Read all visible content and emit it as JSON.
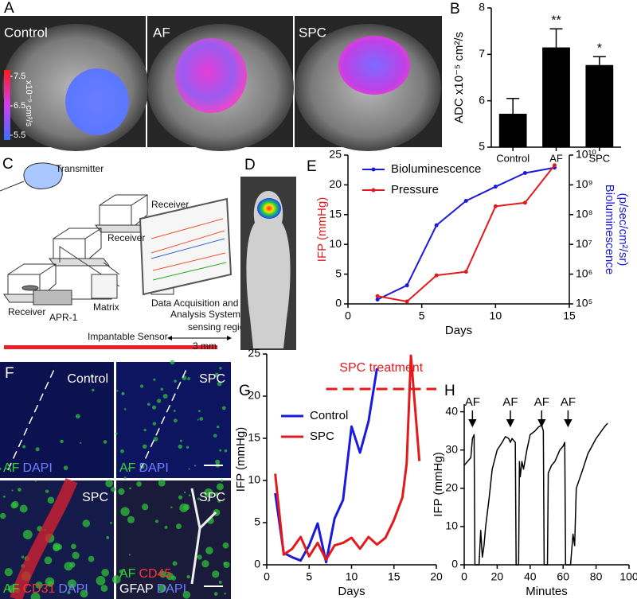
{
  "panel_labels": [
    "A",
    "B",
    "C",
    "D",
    "E",
    "F",
    "G",
    "H"
  ],
  "mri": {
    "titles": [
      "Control",
      "AF",
      "SPC"
    ],
    "colorbar_ticks": [
      7.5,
      6.5,
      5.5
    ],
    "colorbar_label": "x10⁻⁵ cm²/s"
  },
  "diagram": {
    "transmitter": "Transmitter",
    "receivers": [
      "Receiver",
      "Receiver",
      "Receiver"
    ],
    "apr": "APR-1",
    "matrix": "Matrix",
    "system": [
      "Data Acquisition and",
      "Analysis System"
    ],
    "sensor": "Impantable Sensor",
    "sensing_region": "sensing region",
    "sensing_length": "3 mm"
  },
  "histology": {
    "stain_colors": {
      "AF": "#33d633",
      "DAPI": "#6f7fff",
      "CD31": "#ff3333",
      "CD45": "#ff3333",
      "GFAP": "#ffffff"
    },
    "tiles": [
      {
        "title": "Control",
        "stains": [
          "AF",
          "DAPI"
        ]
      },
      {
        "title": "SPC",
        "stains": [
          "AF",
          "DAPI"
        ]
      },
      {
        "title": "SPC",
        "stains": [
          "AF",
          "CD31",
          "DAPI"
        ]
      },
      {
        "title": "SPC",
        "stains": [
          "AF",
          "CD45",
          "GFAP",
          "DAPI"
        ]
      }
    ]
  },
  "chart_data": [
    {
      "type": "bar",
      "ylabel": "ADC x10⁻⁵ cm²/s",
      "categories": [
        "Control",
        "AF",
        "SPC"
      ],
      "values": [
        5.72,
        7.15,
        6.77
      ],
      "errors": [
        0.33,
        0.4,
        0.18
      ],
      "significance": [
        null,
        "**",
        "*"
      ],
      "color": "#000000",
      "ylim": [
        5,
        8
      ],
      "yticks": [
        5,
        6,
        7,
        8
      ]
    },
    {
      "type": "line",
      "xlabel": "Days",
      "ylabel": "IFP (mmHg)",
      "y2label": [
        "Bioluminescence",
        "(p/sec/cm²/sr)"
      ],
      "xlim": [
        0,
        15
      ],
      "xticks": [
        0,
        5,
        10,
        15
      ],
      "ylim": [
        0,
        25
      ],
      "yticks": [
        0,
        5,
        10,
        15,
        20,
        25
      ],
      "y2log": true,
      "y2lim": [
        100000,
        10000000000
      ],
      "y2ticks": [
        {
          "value": 100000,
          "label": "10⁵"
        },
        {
          "value": 1000000,
          "label": "10⁶"
        },
        {
          "value": 10000000,
          "label": "10⁷"
        },
        {
          "value": 100000000,
          "label": "10⁸"
        },
        {
          "value": 1000000000,
          "label": "10⁹"
        },
        {
          "value": 10000000000,
          "label": "10¹⁰"
        }
      ],
      "legend": "upper left",
      "markers": true,
      "series": [
        {
          "name": "Bioluminescence",
          "color": "#1a1adb",
          "axis": "y2",
          "x": [
            2,
            4,
            6,
            8,
            10,
            12,
            14
          ],
          "values": [
            140000,
            420000,
            44000000,
            290000000,
            870000000,
            2500000000,
            3800000000
          ]
        },
        {
          "name": "Pressure",
          "color": "#e31a1c",
          "x": [
            2,
            4,
            6,
            8,
            10,
            12,
            14
          ],
          "values": [
            1.3,
            0.4,
            4.8,
            5.4,
            16.4,
            17,
            23.3
          ]
        }
      ]
    },
    {
      "type": "line",
      "xlabel": "Days",
      "ylabel": "IFP (mmHg)",
      "xlim": [
        0,
        20
      ],
      "xticks": [
        0,
        5,
        10,
        15,
        20
      ],
      "ylim": [
        0,
        25
      ],
      "yticks": [
        0,
        5,
        10,
        15,
        20,
        25
      ],
      "legend": "upper left",
      "annotation": {
        "text": "SPC treatment",
        "x_range": [
          7,
          20
        ],
        "color": "#e31a1c"
      },
      "series": [
        {
          "name": "Control",
          "color": "#1a1adb",
          "x": [
            1,
            2,
            3,
            4,
            5,
            6,
            7,
            8,
            9,
            10,
            11,
            12,
            13
          ],
          "values": [
            8.5,
            1.4,
            0.9,
            0.5,
            2.3,
            4.9,
            0.3,
            5.5,
            7.7,
            16.4,
            13.3,
            17,
            23.3
          ]
        },
        {
          "name": "SPC",
          "color": "#e31a1c",
          "x": [
            1,
            2,
            3,
            4,
            5,
            6,
            7,
            8,
            9,
            10,
            11,
            12,
            13,
            14,
            15,
            16,
            16.5,
            17,
            18
          ],
          "values": [
            10.8,
            1.2,
            1.9,
            3.3,
            1,
            2.6,
            0.6,
            2.3,
            2.6,
            3.2,
            1.9,
            3.3,
            2.4,
            3.2,
            5.3,
            8,
            12,
            24.8,
            12.3
          ]
        }
      ]
    },
    {
      "type": "line",
      "xlabel": "Minutes",
      "ylabel": "IFP (mmHg)",
      "xlim": [
        0,
        100
      ],
      "xticks": [
        0,
        20,
        40,
        60,
        80,
        100
      ],
      "ylim": [
        0,
        42
      ],
      "yticks": [
        0,
        10,
        20,
        30,
        40
      ],
      "events": [
        {
          "text": "AF",
          "x": 5
        },
        {
          "text": "AF",
          "x": 28
        },
        {
          "text": "AF",
          "x": 47
        },
        {
          "text": "AF",
          "x": 63
        }
      ],
      "series": [
        {
          "color": "#000000",
          "x": [
            0,
            2,
            4,
            5,
            6,
            6.5,
            9,
            10,
            11,
            12,
            13,
            15,
            17,
            20,
            23,
            25,
            27,
            28,
            29,
            31,
            31.5,
            33,
            33.5,
            34,
            35,
            36,
            38,
            40,
            43,
            45,
            47,
            48,
            48.5,
            50.5,
            51,
            53,
            55,
            58,
            60,
            61,
            61.5,
            64.5,
            66,
            67,
            68,
            72,
            75,
            80,
            85,
            87
          ],
          "values": [
            26,
            27,
            28,
            33,
            34,
            0,
            0,
            9,
            2,
            5,
            10,
            17,
            25,
            30,
            32,
            33.5,
            33,
            32,
            33,
            32,
            0,
            0,
            27,
            23,
            27,
            25,
            30,
            34,
            35,
            36,
            36.5,
            35,
            0,
            0,
            24,
            26,
            27,
            30,
            31,
            32,
            0,
            0,
            8,
            5,
            20,
            25,
            29,
            33,
            36,
            37
          ]
        }
      ]
    }
  ]
}
